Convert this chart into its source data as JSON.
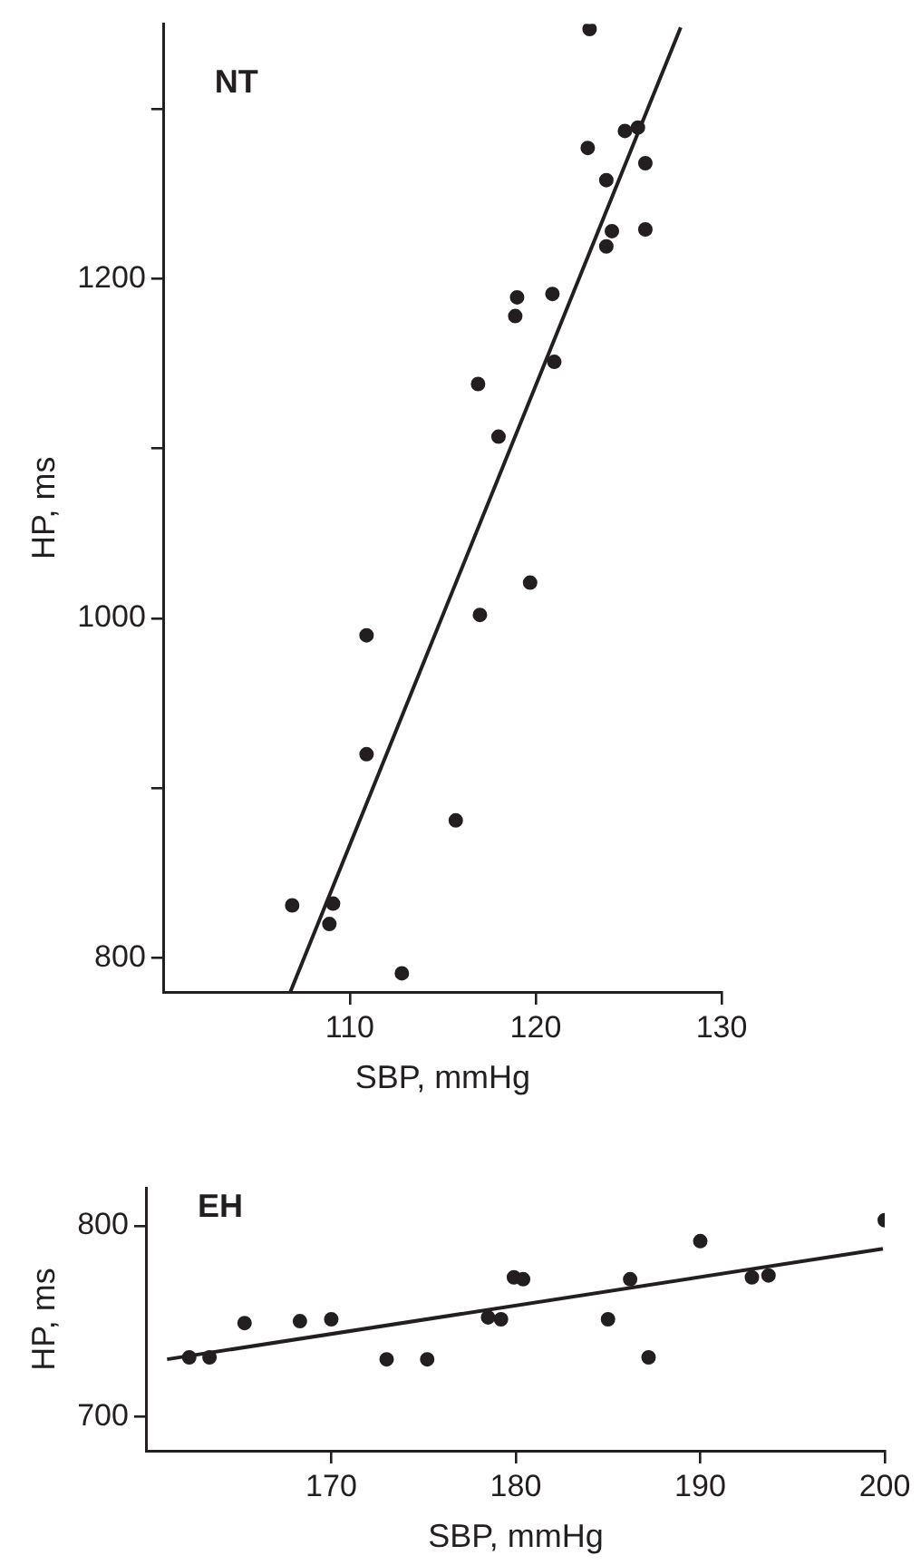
{
  "chart_data": [
    {
      "type": "scatter",
      "title": "NT",
      "xlabel": "SBP, mmHg",
      "ylabel": "HP, ms",
      "xlim": [
        100,
        130
      ],
      "xticks": [
        110,
        120,
        130
      ],
      "ylim": [
        780,
        1350
      ],
      "yticks": [
        800,
        {
          "value": 900,
          "label": null
        },
        1000,
        {
          "value": 1100,
          "label": null
        },
        1200,
        {
          "value": 1300,
          "label": null
        }
      ],
      "grid": false,
      "legend": false,
      "series": [
        {
          "type": "scatter",
          "marker": "circle",
          "color": "#231f20",
          "x": [
            122.9,
            124.8,
            125.5,
            122.8,
            125.9,
            123.8,
            124.1,
            125.9,
            123.8,
            119.0,
            118.9,
            120.9,
            121.0,
            116.9,
            118.0,
            119.7,
            117.0,
            110.9,
            110.9,
            115.7,
            106.9,
            109.1,
            108.9,
            112.8
          ],
          "values": [
            1347,
            1287,
            1289,
            1277,
            1268,
            1258,
            1228,
            1229,
            1219,
            1189,
            1178,
            1191,
            1151,
            1138,
            1107,
            1021,
            1002,
            990,
            920,
            881,
            831,
            832,
            820,
            791
          ]
        },
        {
          "type": "line",
          "marker": "none",
          "color": "#231f20",
          "x": [
            106.8,
            127.8
          ],
          "values": [
            780,
            1348
          ]
        }
      ]
    },
    {
      "type": "scatter",
      "title": "EH",
      "xlabel": "SBP, mmHg",
      "ylabel": "HP, ms",
      "xlim": [
        160,
        200
      ],
      "xticks": [
        170,
        180,
        190,
        200
      ],
      "ylim": [
        682,
        820
      ],
      "yticks": [
        700,
        800
      ],
      "grid": false,
      "legend": false,
      "series": [
        {
          "type": "scatter",
          "marker": "circle",
          "color": "#231f20",
          "x": [
            162.3,
            163.4,
            165.3,
            168.3,
            170.0,
            173.0,
            175.2,
            178.5,
            179.2,
            179.9,
            180.4,
            185.0,
            186.2,
            187.2,
            190.0,
            192.8,
            193.7,
            200.0
          ],
          "values": [
            731,
            731,
            749,
            750,
            751,
            730,
            730,
            752,
            751,
            773,
            772,
            751,
            772,
            731,
            792,
            773,
            774,
            803
          ]
        },
        {
          "type": "line",
          "marker": "none",
          "color": "#231f20",
          "x": [
            161.1,
            199.9
          ],
          "values": [
            730,
            788
          ]
        }
      ]
    }
  ]
}
